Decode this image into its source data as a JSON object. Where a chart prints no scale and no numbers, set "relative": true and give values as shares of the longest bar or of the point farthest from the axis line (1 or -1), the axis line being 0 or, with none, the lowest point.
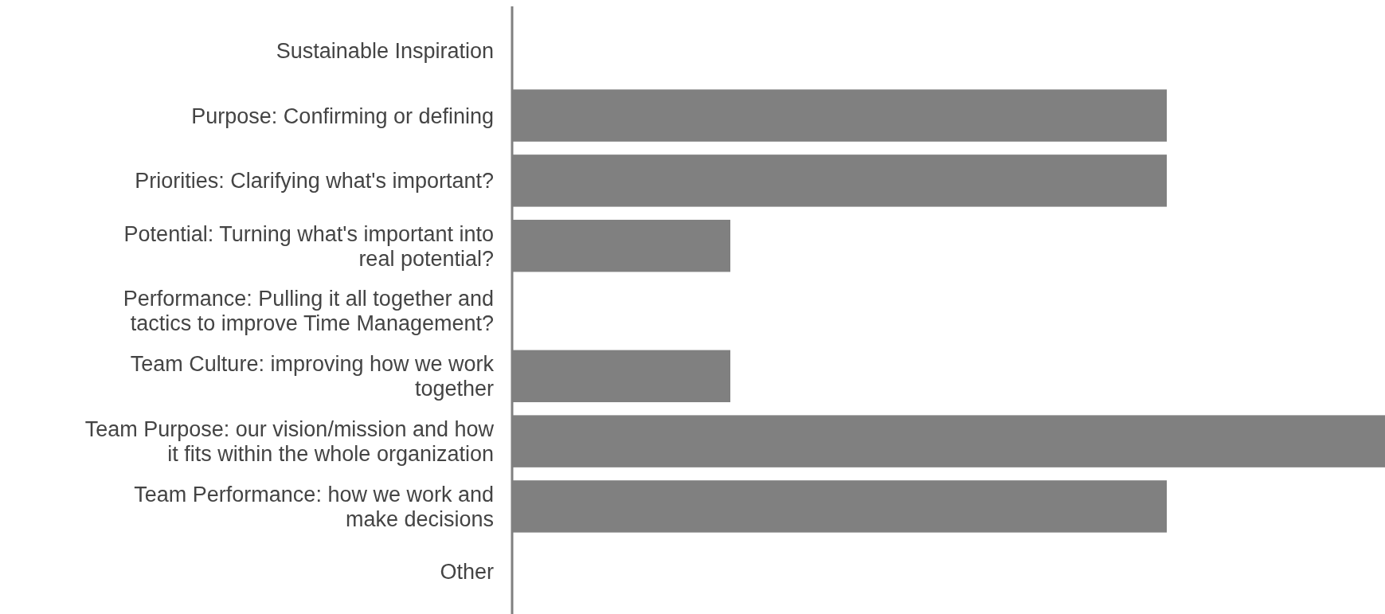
{
  "chart_data": {
    "type": "bar",
    "orientation": "horizontal",
    "relative": true,
    "categories": [
      "Sustainable Inspiration",
      "Purpose: Confirming or defining",
      "Priorities: Clarifying what's important?",
      "Potential: Turning what's important into\nreal potential?",
      "Performance: Pulling it all together and\ntactics to improve Time Management?",
      "Team Culture: improving how we work\ntogether",
      "Team Purpose: our vision/mission and how\nit fits within the whole organization",
      "Team Performance: how we work and\nmake decisions",
      "Other"
    ],
    "values": [
      0,
      0.75,
      0.75,
      0.25,
      0,
      0.25,
      1,
      0.75,
      0
    ],
    "color": "#808080"
  }
}
